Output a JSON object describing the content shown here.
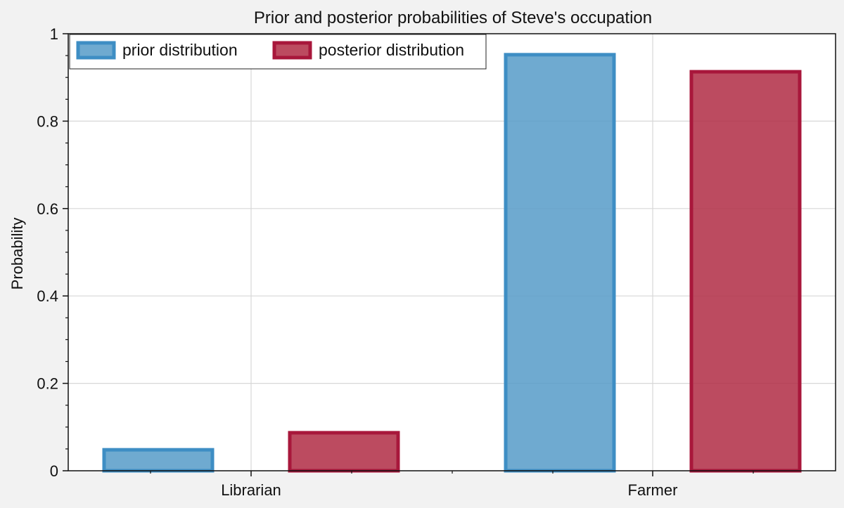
{
  "chart_data": {
    "type": "bar",
    "title": "Prior and posterior probabilities of Steve's occupation",
    "xlabel": "",
    "ylabel": "Probability",
    "categories": [
      "Librarian",
      "Farmer"
    ],
    "series": [
      {
        "name": "prior distribution",
        "values": [
          0.048,
          0.952
        ],
        "fill": "#5b9ec9",
        "edge": "#3e8ec4"
      },
      {
        "name": "posterior distribution",
        "values": [
          0.087,
          0.913
        ],
        "fill": "#b3324a",
        "edge": "#a8173b"
      }
    ],
    "ylim": [
      0,
      1
    ],
    "yticks": [
      0,
      0.2,
      0.4,
      0.6,
      0.8,
      1
    ],
    "ytick_labels": [
      "0",
      "0.2",
      "0.4",
      "0.6",
      "0.8",
      "1"
    ],
    "grid": true,
    "legend_position": "top-left"
  }
}
